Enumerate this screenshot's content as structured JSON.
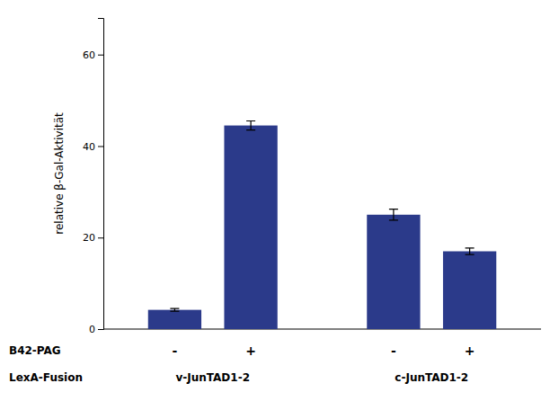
{
  "chart_data": {
    "type": "bar",
    "ylabel": "relative β-Gal-Aktivität",
    "xlabel": "B42-PAG",
    "categories": [
      "-",
      "+",
      "-",
      "+"
    ],
    "group_label": "LexA-Fusion",
    "groups": [
      "v-JunTAD1-2",
      "c-JunTAD1-2"
    ],
    "values": [
      4.2,
      44.5,
      25.0,
      17.0
    ],
    "errors": [
      0.3,
      1.0,
      1.2,
      0.7
    ],
    "color": "#2b3a8a",
    "ylim": [
      0,
      68
    ],
    "yticks": [
      0,
      20,
      40,
      60
    ]
  }
}
